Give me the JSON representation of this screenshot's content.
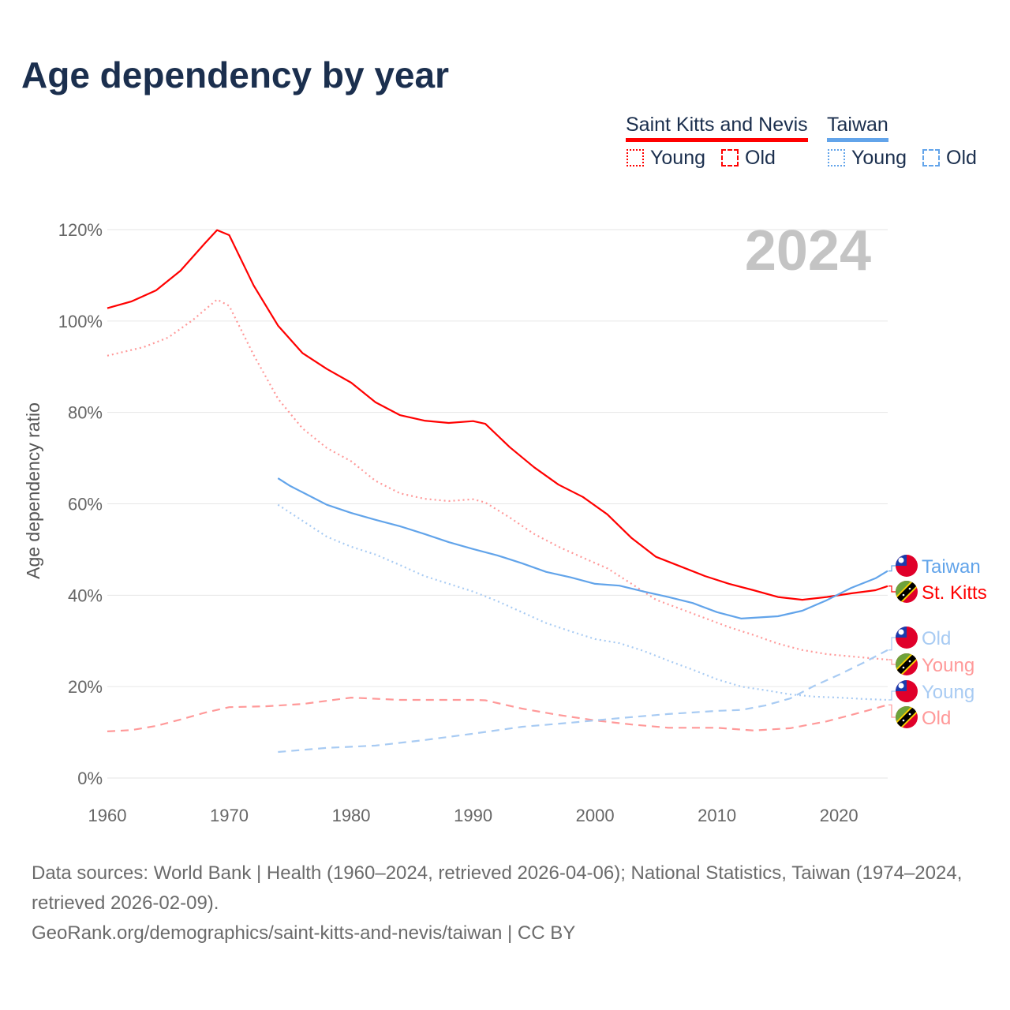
{
  "title": "Age dependency by year",
  "legend": {
    "groups": [
      {
        "name": "Saint Kitts and Nevis",
        "color": "#ff0000",
        "items": [
          "Young",
          "Old"
        ]
      },
      {
        "name": "Taiwan",
        "color": "#62a4ea",
        "items": [
          "Young",
          "Old"
        ]
      }
    ]
  },
  "year_watermark": "2024",
  "footer": {
    "line1": "Data sources: World Bank | Health (1960–2024, retrieved 2026-04-06); National Statistics, Taiwan (1974–2024, retrieved 2026-02-09).",
    "line2": "GeoRank.org/demographics/saint-kitts-and-nevis/taiwan | CC BY"
  },
  "end_labels": [
    "Taiwan",
    "St. Kitts",
    "Old",
    "Young",
    "Young",
    "Old"
  ],
  "chart_data": {
    "type": "line",
    "title": "Age dependency by year",
    "xlabel": "",
    "ylabel": "Age dependency ratio",
    "xlim": [
      1960,
      2024
    ],
    "ylim": [
      0,
      120
    ],
    "xticks": [
      "1960",
      "1970",
      "1980",
      "1990",
      "2000",
      "2010",
      "2020"
    ],
    "yticks": [
      "0%",
      "20%",
      "40%",
      "60%",
      "80%",
      "100%",
      "120%"
    ],
    "series": [
      {
        "name": "Saint Kitts and Nevis",
        "country": "St. Kitts",
        "color": "#ff0000",
        "style": "solid",
        "data": [
          [
            1960,
            102.8
          ],
          [
            1962,
            104.3
          ],
          [
            1964,
            106.7
          ],
          [
            1966,
            111
          ],
          [
            1968,
            117
          ],
          [
            1969,
            119.9
          ],
          [
            1970,
            118.8
          ],
          [
            1972,
            107.8
          ],
          [
            1974,
            99
          ],
          [
            1976,
            93
          ],
          [
            1978,
            89.5
          ],
          [
            1980,
            86.5
          ],
          [
            1982,
            82.2
          ],
          [
            1984,
            79.4
          ],
          [
            1986,
            78.2
          ],
          [
            1988,
            77.7
          ],
          [
            1990,
            78.1
          ],
          [
            1991,
            77.5
          ],
          [
            1993,
            72.4
          ],
          [
            1995,
            68
          ],
          [
            1997,
            64.2
          ],
          [
            1999,
            61.5
          ],
          [
            2001,
            57.7
          ],
          [
            2003,
            52.5
          ],
          [
            2005,
            48.4
          ],
          [
            2007,
            46.3
          ],
          [
            2009,
            44.2
          ],
          [
            2011,
            42.5
          ],
          [
            2013,
            41.1
          ],
          [
            2015,
            39.6
          ],
          [
            2017,
            39
          ],
          [
            2019,
            39.6
          ],
          [
            2021,
            40.4
          ],
          [
            2023,
            41.1
          ],
          [
            2024,
            42
          ]
        ]
      },
      {
        "name": "Saint Kitts and Nevis Young",
        "color": "#ff9999",
        "style": "dotted",
        "data": [
          [
            1960,
            92.4
          ],
          [
            1963,
            94.3
          ],
          [
            1965,
            96.4
          ],
          [
            1967,
            100.2
          ],
          [
            1969,
            104.7
          ],
          [
            1970,
            103.3
          ],
          [
            1972,
            92.6
          ],
          [
            1974,
            83
          ],
          [
            1976,
            76.5
          ],
          [
            1978,
            72.2
          ],
          [
            1980,
            69.3
          ],
          [
            1982,
            65
          ],
          [
            1984,
            62.3
          ],
          [
            1986,
            61.1
          ],
          [
            1988,
            60.6
          ],
          [
            1990,
            61
          ],
          [
            1991,
            60.3
          ],
          [
            1993,
            57
          ],
          [
            1995,
            53.4
          ],
          [
            1997,
            50.6
          ],
          [
            1999,
            48.2
          ],
          [
            2001,
            45.9
          ],
          [
            2003,
            42.5
          ],
          [
            2005,
            39
          ],
          [
            2007,
            37
          ],
          [
            2009,
            35
          ],
          [
            2011,
            33
          ],
          [
            2013,
            31.3
          ],
          [
            2015,
            29.4
          ],
          [
            2017,
            28
          ],
          [
            2019,
            27.1
          ],
          [
            2021,
            26.6
          ],
          [
            2024,
            25.9
          ]
        ]
      },
      {
        "name": "Saint Kitts and Nevis Old",
        "color": "#ff9999",
        "style": "dashed",
        "data": [
          [
            1960,
            10.2
          ],
          [
            1962,
            10.5
          ],
          [
            1964,
            11.4
          ],
          [
            1966,
            12.8
          ],
          [
            1968,
            14.3
          ],
          [
            1970,
            15.5
          ],
          [
            1973,
            15.7
          ],
          [
            1976,
            16.2
          ],
          [
            1980,
            17.6
          ],
          [
            1984,
            17.1
          ],
          [
            1990,
            17.1
          ],
          [
            1991,
            17
          ],
          [
            1994,
            15.2
          ],
          [
            1997,
            13.8
          ],
          [
            2000,
            12.6
          ],
          [
            2003,
            11.7
          ],
          [
            2006,
            11
          ],
          [
            2010,
            11
          ],
          [
            2013,
            10.4
          ],
          [
            2016,
            10.9
          ],
          [
            2019,
            12.4
          ],
          [
            2022,
            14.5
          ],
          [
            2024,
            16
          ]
        ]
      },
      {
        "name": "Taiwan",
        "color": "#62a4ea",
        "style": "solid",
        "data": [
          [
            1974,
            65.6
          ],
          [
            1975,
            63.9
          ],
          [
            1978,
            59.8
          ],
          [
            1980,
            58
          ],
          [
            1982,
            56.5
          ],
          [
            1984,
            55.1
          ],
          [
            1986,
            53.4
          ],
          [
            1988,
            51.6
          ],
          [
            1990,
            50.1
          ],
          [
            1992,
            48.7
          ],
          [
            1994,
            47
          ],
          [
            1996,
            45.1
          ],
          [
            1998,
            43.9
          ],
          [
            2000,
            42.5
          ],
          [
            2002,
            42.1
          ],
          [
            2004,
            40.8
          ],
          [
            2006,
            39.6
          ],
          [
            2008,
            38.3
          ],
          [
            2010,
            36.3
          ],
          [
            2012,
            34.9
          ],
          [
            2015,
            35.4
          ],
          [
            2017,
            36.6
          ],
          [
            2019,
            38.9
          ],
          [
            2021,
            41.6
          ],
          [
            2023,
            43.7
          ],
          [
            2024,
            45.3
          ]
        ]
      },
      {
        "name": "Taiwan Young",
        "color": "#a8cbf3",
        "style": "dotted",
        "data": [
          [
            1974,
            59.8
          ],
          [
            1976,
            56.3
          ],
          [
            1978,
            52.8
          ],
          [
            1980,
            50.6
          ],
          [
            1982,
            48.9
          ],
          [
            1984,
            46.6
          ],
          [
            1986,
            44.2
          ],
          [
            1988,
            42.5
          ],
          [
            1990,
            40.8
          ],
          [
            1992,
            38.7
          ],
          [
            1994,
            36.3
          ],
          [
            1996,
            33.9
          ],
          [
            1998,
            32.1
          ],
          [
            2000,
            30.4
          ],
          [
            2002,
            29.5
          ],
          [
            2004,
            27.8
          ],
          [
            2006,
            25.7
          ],
          [
            2008,
            23.7
          ],
          [
            2010,
            21.6
          ],
          [
            2012,
            20
          ],
          [
            2014,
            19.2
          ],
          [
            2016,
            18.3
          ],
          [
            2018,
            17.8
          ],
          [
            2020,
            17.6
          ],
          [
            2022,
            17.3
          ],
          [
            2024,
            17.1
          ]
        ]
      },
      {
        "name": "Taiwan Old",
        "color": "#a8cbf3",
        "style": "dashed",
        "data": [
          [
            1974,
            5.7
          ],
          [
            1978,
            6.6
          ],
          [
            1982,
            7.1
          ],
          [
            1986,
            8.3
          ],
          [
            1990,
            9.7
          ],
          [
            1994,
            11.2
          ],
          [
            1998,
            12.1
          ],
          [
            2002,
            13.1
          ],
          [
            2006,
            14
          ],
          [
            2010,
            14.7
          ],
          [
            2012,
            14.9
          ],
          [
            2014,
            15.9
          ],
          [
            2016,
            17.4
          ],
          [
            2018,
            20.2
          ],
          [
            2020,
            22.6
          ],
          [
            2022,
            25.2
          ],
          [
            2024,
            28
          ]
        ]
      }
    ]
  }
}
